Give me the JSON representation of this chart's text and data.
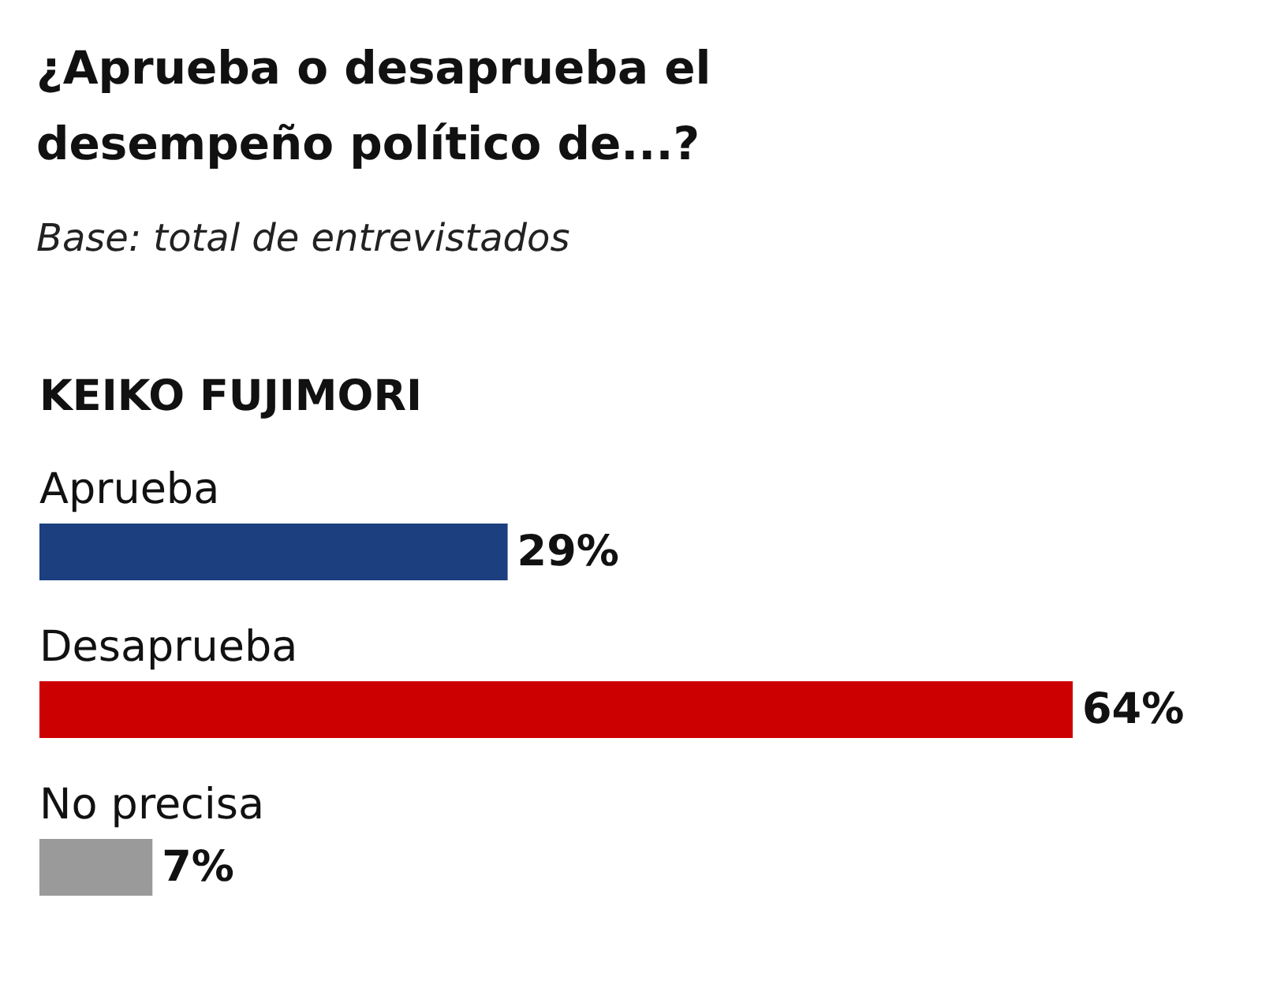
{
  "chart_data": {
    "type": "bar",
    "orientation": "horizontal",
    "title": "¿Aprueba o desaprueba el desempeño político de...?",
    "subtitle": "Base: total de entrevistados",
    "annotations": [
      "KEIKO FUJIMORI"
    ],
    "categories": [
      "Aprueba",
      "Desaprueba",
      "No precisa"
    ],
    "values": [
      29,
      64,
      7
    ],
    "colors": [
      "#1b3f7f",
      "#cc0000",
      "#9a9a9a"
    ],
    "value_labels": [
      "29%",
      "64%",
      "7%"
    ]
  }
}
